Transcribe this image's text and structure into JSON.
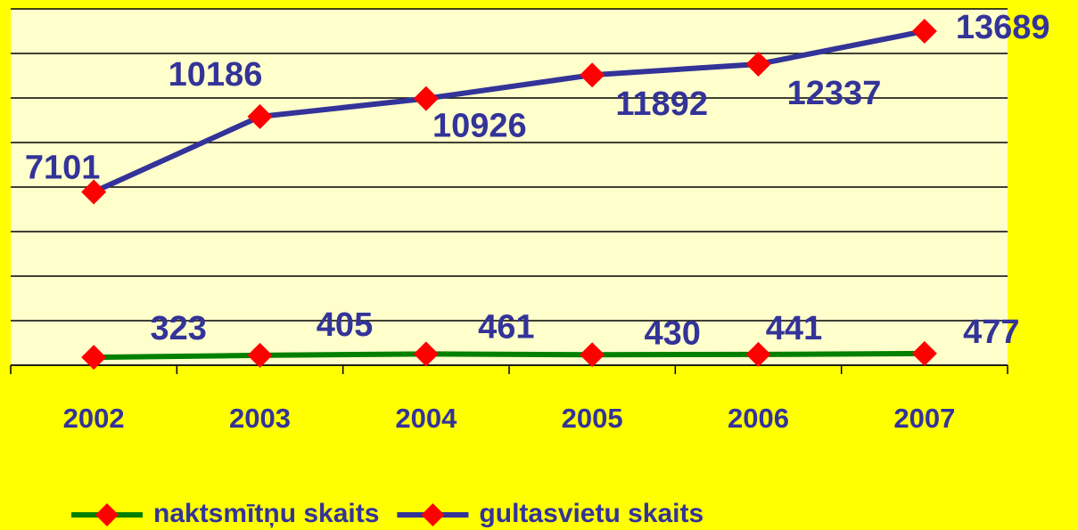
{
  "chart_data": {
    "type": "line",
    "categories": [
      "2002",
      "2003",
      "2004",
      "2005",
      "2006",
      "2007"
    ],
    "series": [
      {
        "name": "naktsmītņu skaits",
        "color": "#008000",
        "marker_color": "#ff0000",
        "values": [
          323,
          405,
          461,
          430,
          441,
          477
        ]
      },
      {
        "name": "gultasvietu skaits",
        "color": "#333399",
        "marker_color": "#ff0000",
        "values": [
          7101,
          10186,
          10926,
          11892,
          12337,
          13689
        ]
      }
    ],
    "ylim": [
      0,
      14600
    ],
    "yticks": [
      0,
      1825,
      3650,
      5475,
      7300,
      9125,
      10950,
      12775,
      14600
    ],
    "grid": true,
    "legend": "bottom"
  }
}
